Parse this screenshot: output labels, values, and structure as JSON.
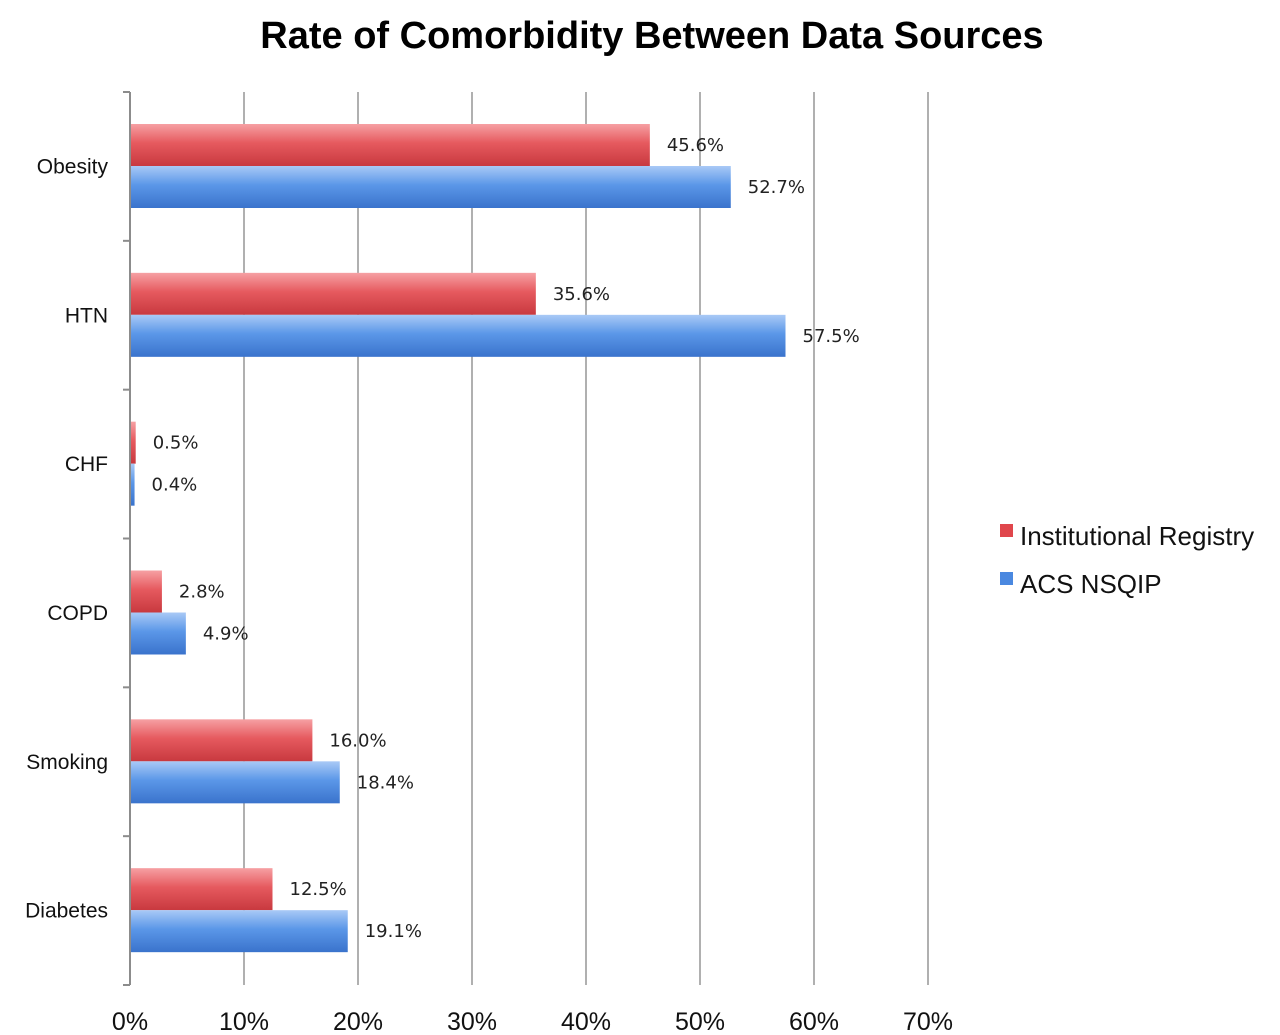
{
  "chart_data": {
    "type": "bar",
    "orientation": "horizontal",
    "title": "Rate of Comorbidity Between Data Sources",
    "categories": [
      "Obesity",
      "HTN",
      "CHF",
      "COPD",
      "Smoking",
      "Diabetes"
    ],
    "series": [
      {
        "name": "Institutional Registry",
        "color": "#e0464c",
        "values": [
          45.6,
          35.6,
          0.5,
          2.8,
          16.0,
          12.5
        ],
        "labels": [
          "45.6%",
          "35.6%",
          "0.5%",
          "2.8%",
          "16.0%",
          "12.5%"
        ]
      },
      {
        "name": "ACS NSQIP",
        "color": "#4a88e0",
        "values": [
          52.7,
          57.5,
          0.4,
          4.9,
          18.4,
          19.1
        ],
        "labels": [
          "52.7%",
          "57.5%",
          "0.4%",
          "4.9%",
          "18.4%",
          "19.1%"
        ]
      }
    ],
    "x_ticks": [
      "0%",
      "10%",
      "20%",
      "30%",
      "40%",
      "50%",
      "60%",
      "70%"
    ],
    "xlim": [
      0,
      70
    ],
    "xlabel": "",
    "ylabel": "",
    "grid": true,
    "legend_position": "right"
  }
}
